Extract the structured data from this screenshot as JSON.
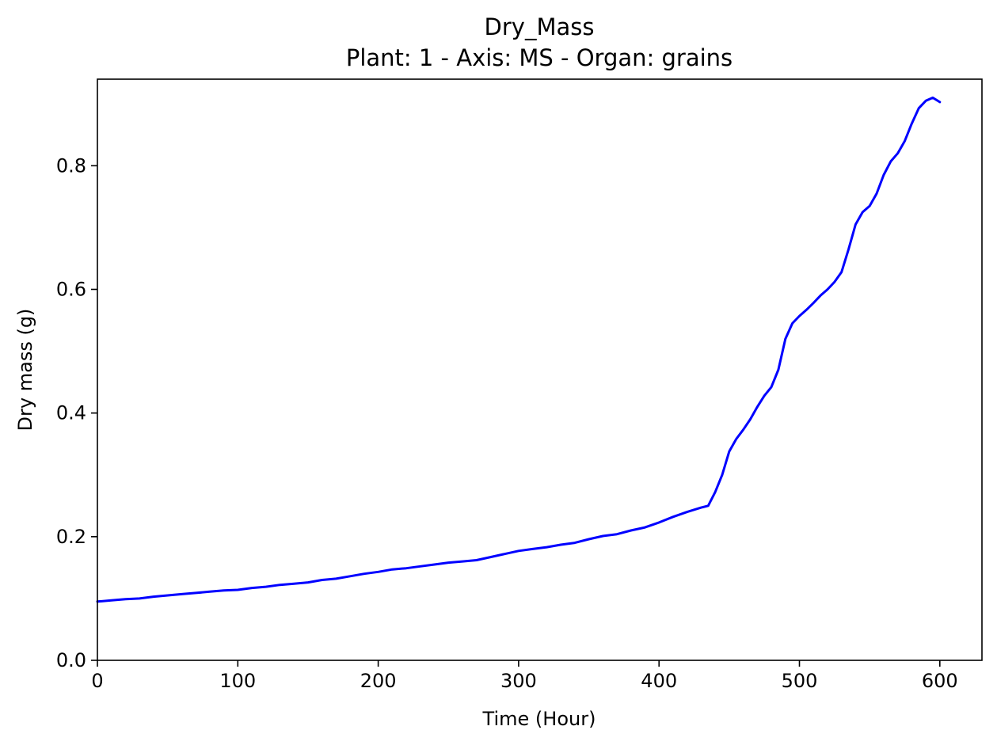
{
  "chart_data": {
    "type": "line",
    "title": "Dry_Mass",
    "subtitle": "Plant: 1 - Axis: MS - Organ: grains",
    "xlabel": "Time (Hour)",
    "ylabel": "Dry mass (g)",
    "xlim": [
      0,
      630
    ],
    "ylim": [
      0,
      0.94
    ],
    "xticks": [
      0,
      100,
      200,
      300,
      400,
      500,
      600
    ],
    "xtick_labels": [
      "0",
      "100",
      "200",
      "300",
      "400",
      "500",
      "600"
    ],
    "yticks": [
      0.0,
      0.2,
      0.4,
      0.6,
      0.8
    ],
    "ytick_labels": [
      "0.0",
      "0.2",
      "0.4",
      "0.6",
      "0.8"
    ],
    "grid": false,
    "series": [
      {
        "color": "#0000ff",
        "x": [
          0,
          10,
          20,
          30,
          40,
          50,
          60,
          70,
          80,
          90,
          100,
          110,
          120,
          130,
          140,
          150,
          160,
          170,
          180,
          190,
          200,
          210,
          220,
          230,
          240,
          250,
          260,
          270,
          280,
          290,
          300,
          310,
          320,
          330,
          340,
          350,
          360,
          370,
          380,
          390,
          400,
          410,
          420,
          430,
          435,
          440,
          445,
          450,
          455,
          460,
          465,
          470,
          475,
          480,
          485,
          490,
          495,
          500,
          505,
          510,
          515,
          520,
          525,
          530,
          535,
          540,
          545,
          550,
          555,
          560,
          565,
          570,
          575,
          580,
          585,
          590,
          595,
          600
        ],
        "y": [
          0.095,
          0.097,
          0.099,
          0.1,
          0.103,
          0.105,
          0.107,
          0.109,
          0.111,
          0.113,
          0.114,
          0.117,
          0.119,
          0.122,
          0.124,
          0.126,
          0.13,
          0.132,
          0.136,
          0.14,
          0.143,
          0.147,
          0.149,
          0.152,
          0.155,
          0.158,
          0.16,
          0.162,
          0.167,
          0.172,
          0.177,
          0.18,
          0.183,
          0.187,
          0.19,
          0.196,
          0.201,
          0.204,
          0.21,
          0.215,
          0.223,
          0.232,
          0.24,
          0.247,
          0.25,
          0.272,
          0.3,
          0.338,
          0.358,
          0.373,
          0.39,
          0.41,
          0.428,
          0.442,
          0.47,
          0.52,
          0.545,
          0.557,
          0.567,
          0.578,
          0.59,
          0.6,
          0.612,
          0.628,
          0.665,
          0.705,
          0.725,
          0.735,
          0.755,
          0.785,
          0.807,
          0.82,
          0.84,
          0.868,
          0.893,
          0.905,
          0.91,
          0.903
        ]
      }
    ]
  }
}
